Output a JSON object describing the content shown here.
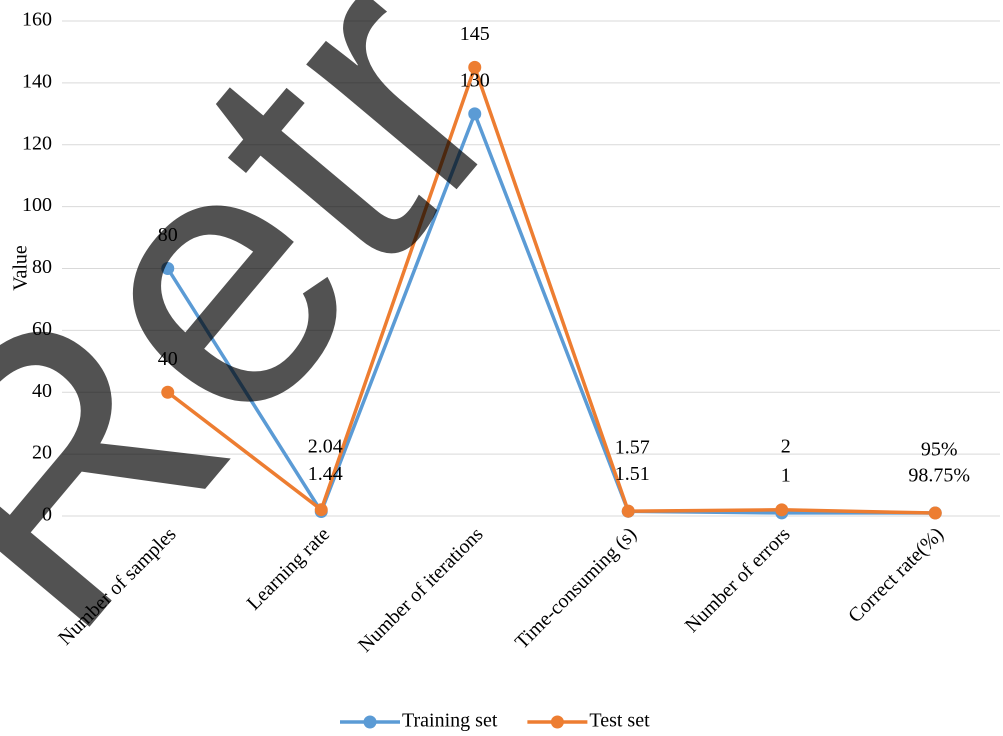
{
  "chart_data": {
    "type": "line",
    "watermark": "Retr",
    "y_label": "Value",
    "categories": [
      "Number of samples",
      "Learning rate",
      "Number of iterations",
      "Time-consuming (s)",
      "Number of errors",
      "Correct rate(%)"
    ],
    "series": [
      {
        "name": "Training set",
        "color": "#5b9bd5",
        "values": [
          80,
          1.44,
          130,
          1.51,
          1,
          0.9875
        ],
        "value_labels": [
          "80",
          "1.44",
          "130",
          "1.51",
          "1",
          "98.75%"
        ]
      },
      {
        "name": "Test set",
        "color": "#ed7d31",
        "values": [
          40,
          2.04,
          145,
          1.57,
          2,
          0.95
        ],
        "value_labels": [
          "40",
          "2.04",
          "145",
          "1.57",
          "2",
          "95%"
        ]
      }
    ],
    "ylim": [
      0,
      160
    ],
    "yticks": [
      0,
      20,
      40,
      60,
      80,
      100,
      120,
      140,
      160
    ],
    "grid": true,
    "legend": "bottom"
  }
}
